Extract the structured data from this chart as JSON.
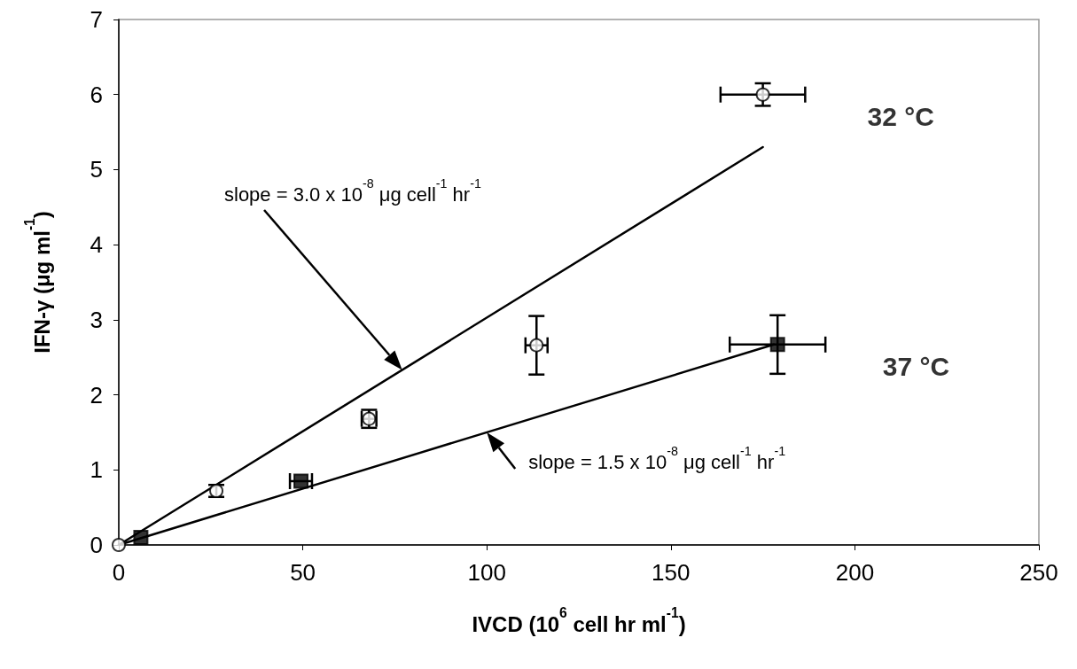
{
  "chart_data": {
    "type": "scatter",
    "xlabel": "IVCD (10$^{6}$ cell hr ml$^{-1}$)",
    "ylabel": "IFN-γ (μg ml$^{-1}$)",
    "xlim": [
      0,
      250
    ],
    "xticks": [
      0,
      50,
      100,
      150,
      200,
      250
    ],
    "ylim": [
      0,
      7
    ],
    "yticks": [
      0,
      1,
      2,
      3,
      4,
      5,
      6,
      7
    ],
    "grid": false,
    "legend": false,
    "series": [
      {
        "name": "32 °C",
        "color": "#000000",
        "marker": "circle",
        "x": [
          0,
          26.5,
          68,
          113.5,
          175
        ],
        "values": [
          0,
          0.72,
          1.68,
          2.66,
          6.0
        ],
        "errors": [
          null,
          0.08,
          0.12,
          0.39,
          0.15
        ],
        "xerrors": [
          null,
          null,
          2,
          3,
          11.5
        ]
      },
      {
        "name": "37 °C",
        "color": "#000000",
        "marker": "square",
        "x": [
          6,
          49.5,
          179
        ],
        "values": [
          0.1,
          0.85,
          2.67
        ],
        "errors": [
          null,
          null,
          0.39
        ],
        "xerrors": [
          null,
          3,
          13
        ]
      },
      {
        "type": "line",
        "color": "#000000",
        "marker": "none",
        "x": [
          0,
          175
        ],
        "values": [
          0,
          5.3
        ]
      },
      {
        "type": "line",
        "color": "#000000",
        "marker": "none",
        "x": [
          0,
          178
        ],
        "values": [
          0,
          2.67
        ]
      }
    ],
    "annotations": [
      "slope = 3.0 x 10$^{-8}$ μg cell$^{-1}$ hr$^{-1}$",
      {
        "text": "slope = 1.5 x 10$^{-8}$ μg cell$^{-1}$ hr$^{-1}$",
        "x": 100,
        "y": 1.5
      }
    ]
  }
}
